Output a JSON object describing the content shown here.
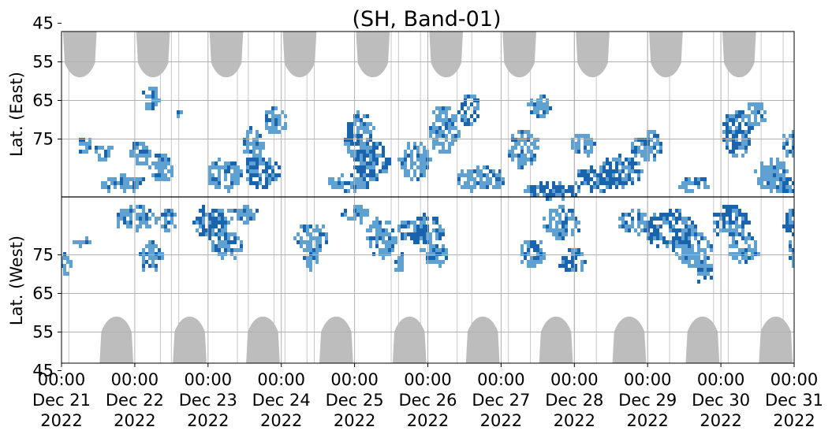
{
  "chart_data": {
    "type": "heatmap",
    "title": "(SH, Band-01)",
    "ylabel_east": "Lat. (East)",
    "ylabel_west": "Lat. (West)",
    "x_ticks": [
      {
        "day": 0,
        "time": "00:00",
        "date": "Dec 21",
        "year": "2022"
      },
      {
        "day": 1,
        "time": "00:00",
        "date": "Dec 22",
        "year": "2022"
      },
      {
        "day": 2,
        "time": "00:00",
        "date": "Dec 23",
        "year": "2022"
      },
      {
        "day": 3,
        "time": "00:00",
        "date": "Dec 24",
        "year": "2022"
      },
      {
        "day": 4,
        "time": "00:00",
        "date": "Dec 25",
        "year": "2022"
      },
      {
        "day": 5,
        "time": "00:00",
        "date": "Dec 26",
        "year": "2022"
      },
      {
        "day": 6,
        "time": "00:00",
        "date": "Dec 27",
        "year": "2022"
      },
      {
        "day": 7,
        "time": "00:00",
        "date": "Dec 28",
        "year": "2022"
      },
      {
        "day": 8,
        "time": "00:00",
        "date": "Dec 29",
        "year": "2022"
      },
      {
        "day": 9,
        "time": "00:00",
        "date": "Dec 30",
        "year": "2022"
      },
      {
        "day": 10,
        "time": "00:00",
        "date": "Dec 31",
        "year": "2022"
      }
    ],
    "x_range": [
      "2022-12-21 00:00",
      "2022-12-31 00:00"
    ],
    "y_ticks_east": [
      "45",
      "55",
      "65",
      "75"
    ],
    "y_ticks_west": [
      "75",
      "65",
      "55",
      "45"
    ],
    "grid": true,
    "colors": {
      "daylight_mask": "#bdbdbd",
      "echo_light": "#5fa2d2",
      "echo_dark": "#1a63ad",
      "grid": "#b0b0b0",
      "divider": "#000000"
    },
    "daylight_east_centers_day": [
      0.25,
      1.25,
      2.25,
      3.25,
      4.25,
      5.25,
      6.25,
      7.25,
      8.25,
      9.25
    ],
    "daylight_west_centers_day": [
      0.75,
      1.75,
      2.75,
      3.75,
      4.75,
      5.75,
      6.75,
      7.75,
      8.75,
      9.75
    ],
    "echo_blobs": [
      {
        "day": 0.05,
        "side": "west",
        "lat": 73,
        "wd": 0.08,
        "wl": 3,
        "s": "light"
      },
      {
        "day": 0.25,
        "side": "west",
        "lat": 79,
        "wd": 0.12,
        "wl": 1,
        "s": "light"
      },
      {
        "day": 0.3,
        "side": "east",
        "lat": 76,
        "wd": 0.1,
        "wl": 2,
        "s": "light"
      },
      {
        "day": 0.55,
        "side": "east",
        "lat": 78,
        "wd": 0.12,
        "wl": 2,
        "s": "light"
      },
      {
        "day": 0.8,
        "side": "east",
        "lat": 86,
        "wd": 0.3,
        "wl": 2,
        "s": "light"
      },
      {
        "day": 1.0,
        "side": "west",
        "lat": 85,
        "wd": 0.3,
        "wl": 3,
        "s": "light"
      },
      {
        "day": 1.05,
        "side": "east",
        "lat": 78,
        "wd": 0.15,
        "wl": 3,
        "s": "light"
      },
      {
        "day": 1.2,
        "side": "west",
        "lat": 75,
        "wd": 0.15,
        "wl": 4,
        "s": "light"
      },
      {
        "day": 1.2,
        "side": "east",
        "lat": 64,
        "wd": 0.1,
        "wl": 3,
        "s": "light"
      },
      {
        "day": 1.35,
        "side": "east",
        "lat": 82,
        "wd": 0.15,
        "wl": 4,
        "s": "light"
      },
      {
        "day": 1.45,
        "side": "west",
        "lat": 84,
        "wd": 0.1,
        "wl": 3,
        "s": "light"
      },
      {
        "day": 1.6,
        "side": "east",
        "lat": 68,
        "wd": 0.05,
        "wl": 1,
        "s": "light"
      },
      {
        "day": 2.0,
        "side": "west",
        "lat": 84,
        "wd": 0.25,
        "wl": 4,
        "s": "dark"
      },
      {
        "day": 2.2,
        "side": "east",
        "lat": 84,
        "wd": 0.25,
        "wl": 4,
        "s": "light"
      },
      {
        "day": 2.25,
        "side": "west",
        "lat": 78,
        "wd": 0.2,
        "wl": 4,
        "s": "light"
      },
      {
        "day": 2.45,
        "side": "west",
        "lat": 86,
        "wd": 0.2,
        "wl": 2,
        "s": "light"
      },
      {
        "day": 2.6,
        "side": "east",
        "lat": 76,
        "wd": 0.15,
        "wl": 4,
        "s": "light"
      },
      {
        "day": 2.7,
        "side": "east",
        "lat": 83,
        "wd": 0.25,
        "wl": 4,
        "s": "dark"
      },
      {
        "day": 2.9,
        "side": "east",
        "lat": 70,
        "wd": 0.15,
        "wl": 4,
        "s": "light"
      },
      {
        "day": 3.4,
        "side": "west",
        "lat": 80,
        "wd": 0.22,
        "wl": 4,
        "s": "light"
      },
      {
        "day": 3.4,
        "side": "west",
        "lat": 74,
        "wd": 0.1,
        "wl": 3,
        "s": "light"
      },
      {
        "day": 3.9,
        "side": "east",
        "lat": 86,
        "wd": 0.3,
        "wl": 2,
        "s": "light"
      },
      {
        "day": 4.0,
        "side": "west",
        "lat": 86,
        "wd": 0.2,
        "wl": 2,
        "s": "light"
      },
      {
        "day": 4.05,
        "side": "east",
        "lat": 74,
        "wd": 0.2,
        "wl": 6,
        "s": "dark"
      },
      {
        "day": 4.2,
        "side": "east",
        "lat": 80,
        "wd": 0.25,
        "wl": 5,
        "s": "dark"
      },
      {
        "day": 4.35,
        "side": "west",
        "lat": 80,
        "wd": 0.2,
        "wl": 5,
        "s": "light"
      },
      {
        "day": 4.6,
        "side": "west",
        "lat": 73,
        "wd": 0.05,
        "wl": 3,
        "s": "light"
      },
      {
        "day": 4.8,
        "side": "east",
        "lat": 80,
        "wd": 0.2,
        "wl": 5,
        "s": "light"
      },
      {
        "day": 4.9,
        "side": "west",
        "lat": 82,
        "wd": 0.3,
        "wl": 4,
        "s": "dark"
      },
      {
        "day": 5.2,
        "side": "east",
        "lat": 72,
        "wd": 0.2,
        "wl": 6,
        "s": "light"
      },
      {
        "day": 5.55,
        "side": "east",
        "lat": 67,
        "wd": 0.15,
        "wl": 4,
        "s": "dark"
      },
      {
        "day": 5.1,
        "side": "west",
        "lat": 76,
        "wd": 0.2,
        "wl": 3,
        "s": "light"
      },
      {
        "day": 5.7,
        "side": "east",
        "lat": 85,
        "wd": 0.35,
        "wl": 3,
        "s": "light"
      },
      {
        "day": 6.3,
        "side": "east",
        "lat": 77,
        "wd": 0.2,
        "wl": 5,
        "s": "light"
      },
      {
        "day": 6.5,
        "side": "east",
        "lat": 66,
        "wd": 0.15,
        "wl": 3,
        "s": "light"
      },
      {
        "day": 6.7,
        "side": "east",
        "lat": 88,
        "wd": 0.4,
        "wl": 2,
        "s": "dark"
      },
      {
        "day": 6.8,
        "side": "west",
        "lat": 84,
        "wd": 0.25,
        "wl": 4,
        "s": "light"
      },
      {
        "day": 6.4,
        "side": "west",
        "lat": 76,
        "wd": 0.15,
        "wl": 4,
        "s": "light"
      },
      {
        "day": 6.95,
        "side": "west",
        "lat": 74,
        "wd": 0.2,
        "wl": 3,
        "s": "dark"
      },
      {
        "day": 7.3,
        "side": "east",
        "lat": 85,
        "wd": 0.3,
        "wl": 3,
        "s": "dark"
      },
      {
        "day": 7.1,
        "side": "east",
        "lat": 76,
        "wd": 0.15,
        "wl": 3,
        "s": "light"
      },
      {
        "day": 7.6,
        "side": "east",
        "lat": 83,
        "wd": 0.3,
        "wl": 4,
        "s": "dark"
      },
      {
        "day": 7.8,
        "side": "west",
        "lat": 84,
        "wd": 0.2,
        "wl": 3,
        "s": "light"
      },
      {
        "day": 7.9,
        "side": "east",
        "lat": 77,
        "wd": 0.15,
        "wl": 3,
        "s": "light"
      },
      {
        "day": 8.3,
        "side": "west",
        "lat": 82,
        "wd": 0.35,
        "wl": 5,
        "s": "dark"
      },
      {
        "day": 8.05,
        "side": "east",
        "lat": 76,
        "wd": 0.12,
        "wl": 4,
        "s": "light"
      },
      {
        "day": 8.6,
        "side": "west",
        "lat": 77,
        "wd": 0.25,
        "wl": 5,
        "s": "light"
      },
      {
        "day": 8.75,
        "side": "west",
        "lat": 71,
        "wd": 0.1,
        "wl": 3,
        "s": "dark"
      },
      {
        "day": 8.6,
        "side": "east",
        "lat": 86,
        "wd": 0.2,
        "wl": 2,
        "s": "light"
      },
      {
        "day": 9.2,
        "side": "east",
        "lat": 73,
        "wd": 0.2,
        "wl": 6,
        "s": "dark"
      },
      {
        "day": 9.45,
        "side": "east",
        "lat": 68,
        "wd": 0.15,
        "wl": 3,
        "s": "light"
      },
      {
        "day": 9.1,
        "side": "west",
        "lat": 84,
        "wd": 0.25,
        "wl": 4,
        "s": "dark"
      },
      {
        "day": 9.3,
        "side": "west",
        "lat": 77,
        "wd": 0.2,
        "wl": 4,
        "s": "light"
      },
      {
        "day": 9.7,
        "side": "east",
        "lat": 84,
        "wd": 0.25,
        "wl": 4,
        "s": "light"
      },
      {
        "day": 9.95,
        "side": "east",
        "lat": 76,
        "wd": 0.12,
        "wl": 4,
        "s": "light"
      },
      {
        "day": 10.0,
        "side": "east",
        "lat": 86,
        "wd": 0.3,
        "wl": 2,
        "s": "dark"
      },
      {
        "day": 10.1,
        "side": "west",
        "lat": 84,
        "wd": 0.3,
        "wl": 4,
        "s": "dark"
      },
      {
        "day": 10.05,
        "side": "west",
        "lat": 76,
        "wd": 0.15,
        "wl": 4,
        "s": "light"
      }
    ]
  }
}
